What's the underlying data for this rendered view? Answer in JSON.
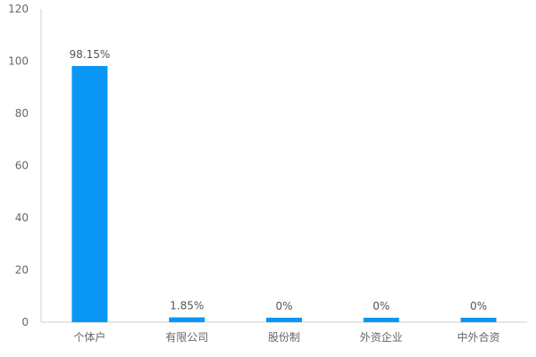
{
  "chart_data": {
    "type": "bar",
    "title": "",
    "xlabel": "",
    "ylabel": "",
    "categories": [
      "个体户",
      "有限公司",
      "股份制",
      "外资企业",
      "中外合资"
    ],
    "values": [
      98.15,
      1.85,
      0,
      0,
      0
    ],
    "data_labels": [
      "98.15%",
      "1.85%",
      "0%",
      "0%",
      "0%"
    ],
    "ylim": [
      0,
      120
    ],
    "yticks": [
      0,
      20,
      40,
      60,
      80,
      100,
      120
    ],
    "grid": false,
    "legend": "none",
    "bar_color": "#0a96f5"
  }
}
